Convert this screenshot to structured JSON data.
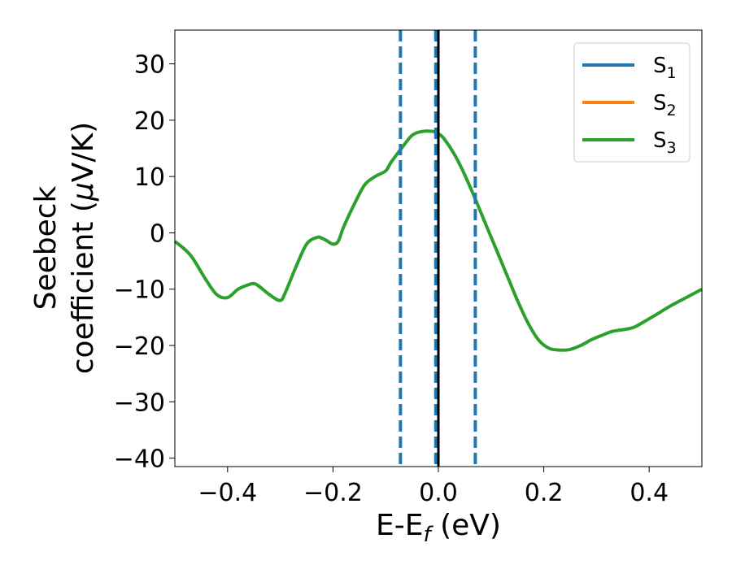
{
  "chart_data": {
    "type": "line",
    "xlabel": {
      "main": "E-E",
      "sub": "f",
      "unit": " (eV)"
    },
    "ylabel": {
      "line1": "Seebeck",
      "line2": "coefficient  (",
      "mu": "μ",
      "unit": "V/K)"
    },
    "xlim": [
      -0.5,
      0.5
    ],
    "ylim": [
      -41.5,
      36
    ],
    "xticks": [
      -0.4,
      -0.2,
      0.0,
      0.2,
      0.4
    ],
    "xtick_labels": [
      "−0.4",
      "−0.2",
      "0.0",
      "0.2",
      "0.4"
    ],
    "yticks": [
      30,
      20,
      10,
      0,
      -10,
      -20,
      -30,
      -40
    ],
    "ytick_labels": [
      "30",
      "20",
      "10",
      "0",
      "−10",
      "−20",
      "−30",
      "−40"
    ],
    "legend_position": "upper-right",
    "vlines": [
      {
        "x": -0.072,
        "style": "dashed",
        "color": "#1f77b4"
      },
      {
        "x": -0.005,
        "style": "dashed",
        "color": "#1f77b4"
      },
      {
        "x": 0.07,
        "style": "dashed",
        "color": "#1f77b4"
      },
      {
        "x": 0.0,
        "style": "solid",
        "color": "#000000"
      }
    ],
    "x": [
      -0.5,
      -0.47,
      -0.44,
      -0.42,
      -0.4,
      -0.38,
      -0.36,
      -0.35,
      -0.34,
      -0.32,
      -0.3,
      -0.29,
      -0.27,
      -0.25,
      -0.23,
      -0.22,
      -0.21,
      -0.2,
      -0.19,
      -0.18,
      -0.16,
      -0.14,
      -0.12,
      -0.1,
      -0.09,
      -0.07,
      -0.05,
      -0.03,
      -0.01,
      0.0,
      0.01,
      0.03,
      0.05,
      0.07,
      0.09,
      0.11,
      0.13,
      0.15,
      0.17,
      0.19,
      0.21,
      0.23,
      0.25,
      0.27,
      0.29,
      0.31,
      0.33,
      0.35,
      0.37,
      0.39,
      0.41,
      0.44,
      0.47,
      0.5
    ],
    "series": [
      {
        "name_main": "S",
        "name_sub": "1",
        "color": "#1f77b4",
        "visible_line": false,
        "values": [
          -1.5,
          -4.0,
          -8.5,
          -11.0,
          -11.5,
          -10.0,
          -9.2,
          -9.0,
          -9.5,
          -11.0,
          -12.0,
          -10.5,
          -6.0,
          -2.0,
          -0.8,
          -1.0,
          -1.5,
          -2.0,
          -1.5,
          1.0,
          5.0,
          8.5,
          10.0,
          11.0,
          12.5,
          15.0,
          17.3,
          18.0,
          18.0,
          17.6,
          16.8,
          14.0,
          10.3,
          6.0,
          1.5,
          -3.0,
          -7.5,
          -12.0,
          -16.0,
          -19.0,
          -20.5,
          -20.8,
          -20.7,
          -20.0,
          -19.0,
          -18.2,
          -17.5,
          -17.2,
          -16.8,
          -15.8,
          -14.7,
          -13.0,
          -11.5,
          -10.0
        ]
      },
      {
        "name_main": "S",
        "name_sub": "2",
        "color": "#ff7f0e",
        "visible_line": false,
        "values": [
          -1.5,
          -4.0,
          -8.5,
          -11.0,
          -11.5,
          -10.0,
          -9.2,
          -9.0,
          -9.5,
          -11.0,
          -12.0,
          -10.5,
          -6.0,
          -2.0,
          -0.8,
          -1.0,
          -1.5,
          -2.0,
          -1.5,
          1.0,
          5.0,
          8.5,
          10.0,
          11.0,
          12.5,
          15.0,
          17.3,
          18.0,
          18.0,
          17.6,
          16.8,
          14.0,
          10.3,
          6.0,
          1.5,
          -3.0,
          -7.5,
          -12.0,
          -16.0,
          -19.0,
          -20.5,
          -20.8,
          -20.7,
          -20.0,
          -19.0,
          -18.2,
          -17.5,
          -17.2,
          -16.8,
          -15.8,
          -14.7,
          -13.0,
          -11.5,
          -10.0
        ]
      },
      {
        "name_main": "S",
        "name_sub": "3",
        "color": "#2ca02c",
        "visible_line": true,
        "values": [
          -1.5,
          -4.0,
          -8.5,
          -11.0,
          -11.5,
          -10.0,
          -9.2,
          -9.0,
          -9.5,
          -11.0,
          -12.0,
          -10.5,
          -6.0,
          -2.0,
          -0.8,
          -1.0,
          -1.5,
          -2.0,
          -1.5,
          1.0,
          5.0,
          8.5,
          10.0,
          11.0,
          12.5,
          15.0,
          17.3,
          18.0,
          18.0,
          17.6,
          16.8,
          14.0,
          10.3,
          6.0,
          1.5,
          -3.0,
          -7.5,
          -12.0,
          -16.0,
          -19.0,
          -20.5,
          -20.8,
          -20.7,
          -20.0,
          -19.0,
          -18.2,
          -17.5,
          -17.2,
          -16.8,
          -15.8,
          -14.7,
          -13.0,
          -11.5,
          -10.0
        ]
      }
    ]
  }
}
